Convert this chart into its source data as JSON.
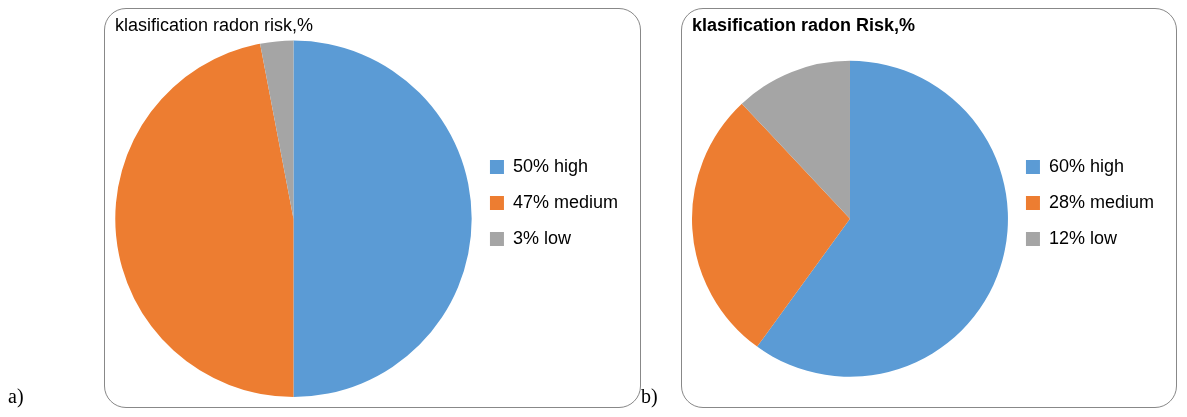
{
  "chart_data": [
    {
      "type": "pie",
      "title": "klasification radon risk,%",
      "categories": [
        "50% high",
        "47% medium",
        "3% low"
      ],
      "values": [
        50,
        47,
        3
      ],
      "colors": [
        "#5b9bd5",
        "#ed7d31",
        "#a5a5a5"
      ],
      "legend": "right",
      "annotations": [
        "a)"
      ]
    },
    {
      "type": "pie",
      "title": "klasification radon Risk,%",
      "categories": [
        "60% high",
        "28% medium",
        "12% low"
      ],
      "values": [
        60,
        28,
        12
      ],
      "colors": [
        "#5b9bd5",
        "#ed7d31",
        "#a5a5a5"
      ],
      "legend": "right",
      "annotations": [
        "b)"
      ]
    }
  ]
}
